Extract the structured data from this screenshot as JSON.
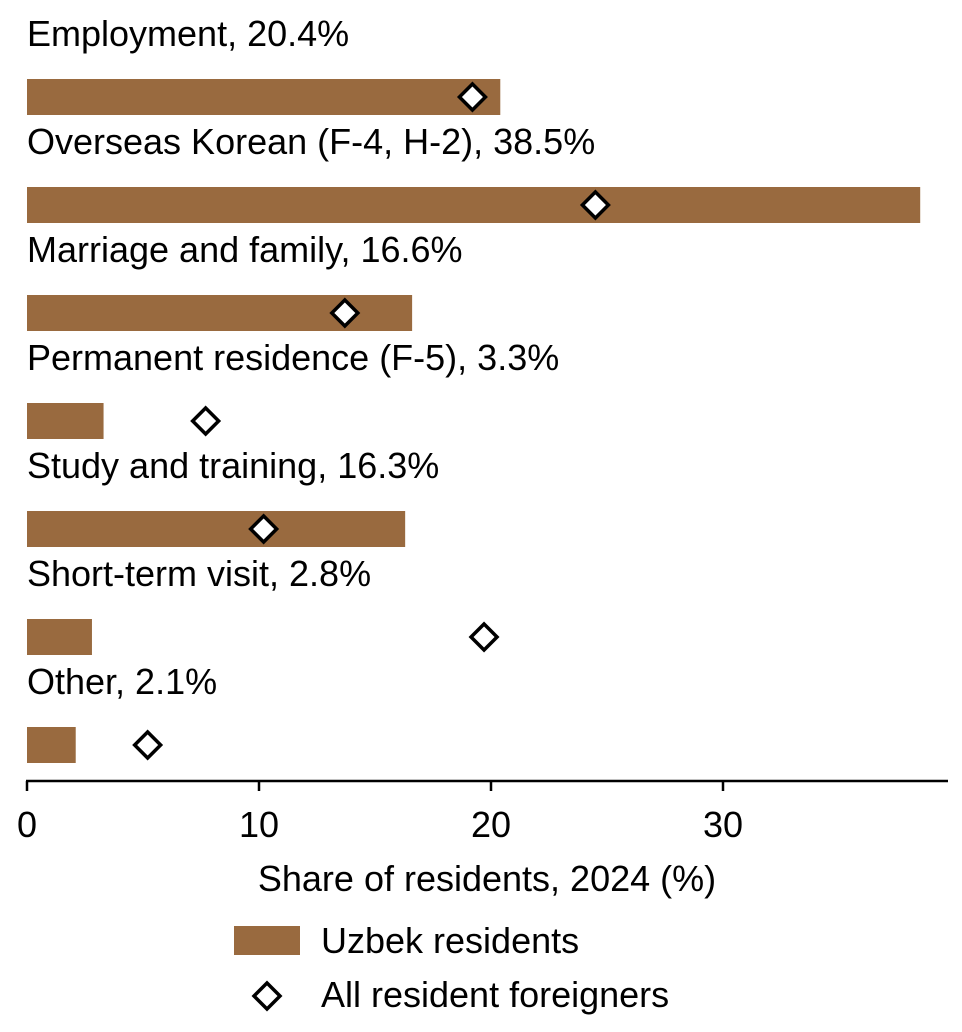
{
  "chart_data": {
    "type": "bar",
    "orientation": "horizontal",
    "categories": [
      "Employment, 20.4%",
      "Overseas Korean (F-4, H-2), 38.5%",
      "Marriage and family, 16.6%",
      "Permanent residence (F-5), 3.3%",
      "Study and training, 16.3%",
      "Short-term visit, 2.8%",
      "Other, 2.1%"
    ],
    "series": [
      {
        "name": "Uzbek residents",
        "kind": "bar",
        "values": [
          20.4,
          38.5,
          16.6,
          3.3,
          16.3,
          2.8,
          2.1
        ]
      },
      {
        "name": "All resident foreigners",
        "kind": "marker",
        "values": [
          19.2,
          24.5,
          13.7,
          7.7,
          10.2,
          19.7,
          5.2
        ]
      }
    ],
    "xlabel": "Share of residents, 2024 (%)",
    "xticks": [
      0,
      10,
      20,
      30
    ],
    "xlim": [
      0,
      39.7
    ],
    "legend_position": "bottom-center",
    "grid": false,
    "colors": {
      "bar": "#996a3f",
      "marker_fill": "#ffffff",
      "marker_stroke": "#000000",
      "axis": "#000000"
    }
  }
}
